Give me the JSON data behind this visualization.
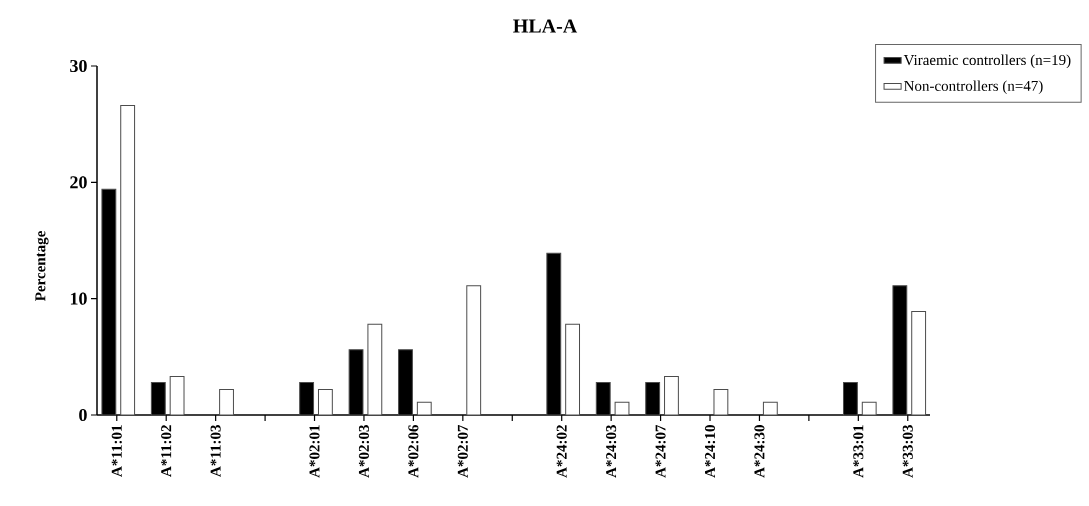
{
  "chart_data": {
    "type": "bar",
    "title": "HLA-A",
    "ylabel": "Percentage",
    "categories": [
      "A*11:01",
      "A*11:02",
      "A*11:03",
      null,
      "A*02:01",
      "A*02:03",
      "A*02:06",
      "A*02:07",
      null,
      "A*24:02",
      "A*24:03",
      "A*24:07",
      "A*24:10",
      "A*24:30",
      null,
      "A*33:01",
      "A*33:03"
    ],
    "series": [
      {
        "name": "Viraemic controllers (n=19)",
        "color": "#000000",
        "values": [
          19.4,
          2.8,
          null,
          null,
          2.8,
          5.6,
          5.6,
          null,
          null,
          13.9,
          2.8,
          2.8,
          null,
          null,
          null,
          2.8,
          11.1
        ]
      },
      {
        "name": "Non-controllers (n=47)",
        "color": "#ffffff",
        "values": [
          26.6,
          3.3,
          2.2,
          null,
          2.2,
          7.8,
          1.1,
          11.1,
          null,
          7.8,
          1.1,
          3.3,
          2.2,
          1.1,
          null,
          1.1,
          8.9
        ]
      }
    ],
    "ylim": [
      0,
      30
    ],
    "yticks": [
      0,
      10,
      20,
      30
    ],
    "grid": false,
    "legend": "top right"
  }
}
